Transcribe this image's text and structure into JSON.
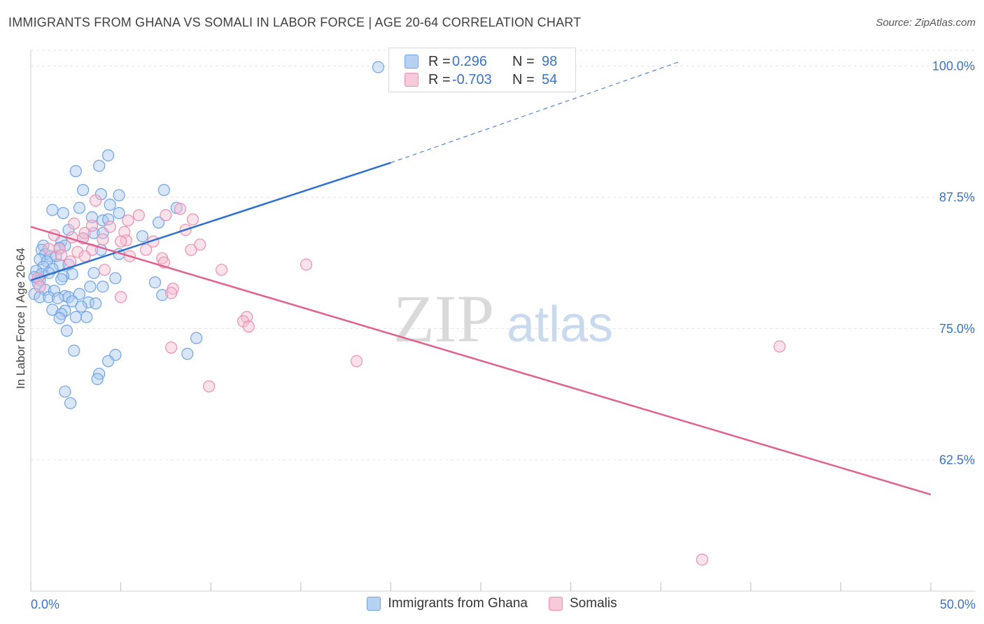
{
  "title": "IMMIGRANTS FROM GHANA VS SOMALI IN LABOR FORCE | AGE 20-64 CORRELATION CHART",
  "source": "Source: ZipAtlas.com",
  "watermark": {
    "zip": "ZIP",
    "atlas": "atlas"
  },
  "legend": {
    "rows": [
      {
        "r_label": "R =",
        "r_value": "0.296",
        "n_label": "N =",
        "n_value": "98"
      },
      {
        "r_label": "R =",
        "r_value": "-0.703",
        "n_label": "N =",
        "n_value": "54"
      }
    ]
  },
  "bottom_legend": [
    "Immigrants from Ghana",
    "Somalis"
  ],
  "colors": {
    "ghana": "#6fa3e6",
    "ghana_fill": "#a9c8f0",
    "ghana_line": "#2e6fcf",
    "somali": "#ec8fae",
    "somali_fill": "#f5bfd0",
    "somali_line": "#e0608e",
    "axis_text": "#3a73c4"
  },
  "chart_data": {
    "type": "scatter",
    "title": "IMMIGRANTS FROM GHANA VS SOMALI IN LABOR FORCE | AGE 20-64 CORRELATION CHART",
    "xlabel": "",
    "ylabel": "In Labor Force | Age 20-64",
    "xlim": [
      0,
      50
    ],
    "ylim": [
      50,
      101.5
    ],
    "x_tick_labels": [
      "0.0%",
      "50.0%"
    ],
    "y_ticks": [
      62.5,
      75.0,
      87.5,
      100.0
    ],
    "y_tick_labels": [
      "62.5%",
      "75.0%",
      "87.5%",
      "100.0%"
    ],
    "series": [
      {
        "name": "Immigrants from Ghana",
        "r": 0.296,
        "n": 98,
        "trend": {
          "x0": 0,
          "y0": 79.6,
          "x1": 20,
          "y1": 90.8,
          "dash_x1": 36,
          "dash_y1": 100.4
        },
        "points": [
          [
            19.3,
            99.9
          ],
          [
            4.3,
            91.5
          ],
          [
            3.8,
            90.5
          ],
          [
            2.5,
            90.0
          ],
          [
            2.9,
            88.2
          ],
          [
            7.4,
            88.2
          ],
          [
            4.9,
            87.7
          ],
          [
            3.9,
            87.8
          ],
          [
            4.4,
            86.8
          ],
          [
            1.2,
            86.3
          ],
          [
            1.8,
            86.0
          ],
          [
            4.9,
            86.0
          ],
          [
            8.1,
            86.5
          ],
          [
            2.7,
            86.5
          ],
          [
            3.4,
            85.6
          ],
          [
            4.0,
            85.3
          ],
          [
            4.3,
            85.4
          ],
          [
            7.1,
            85.1
          ],
          [
            2.1,
            84.4
          ],
          [
            3.5,
            84.1
          ],
          [
            4.0,
            84.1
          ],
          [
            6.2,
            83.8
          ],
          [
            2.9,
            83.6
          ],
          [
            1.7,
            83.3
          ],
          [
            0.7,
            82.9
          ],
          [
            1.6,
            82.7
          ],
          [
            1.9,
            82.9
          ],
          [
            0.6,
            82.5
          ],
          [
            3.9,
            82.5
          ],
          [
            0.8,
            82.1
          ],
          [
            1.1,
            81.9
          ],
          [
            1.4,
            81.9
          ],
          [
            4.9,
            82.1
          ],
          [
            0.5,
            81.6
          ],
          [
            0.9,
            81.4
          ],
          [
            1.6,
            81.1
          ],
          [
            2.1,
            81.1
          ],
          [
            0.7,
            80.9
          ],
          [
            1.2,
            80.7
          ],
          [
            0.3,
            80.5
          ],
          [
            0.6,
            80.2
          ],
          [
            1.0,
            80.3
          ],
          [
            2.3,
            80.2
          ],
          [
            3.5,
            80.3
          ],
          [
            0.2,
            79.9
          ],
          [
            0.5,
            79.6
          ],
          [
            1.8,
            80.0
          ],
          [
            4.7,
            79.8
          ],
          [
            0.4,
            79.3
          ],
          [
            1.7,
            79.7
          ],
          [
            6.9,
            79.4
          ],
          [
            3.3,
            79.0
          ],
          [
            4.0,
            79.0
          ],
          [
            0.8,
            78.7
          ],
          [
            1.3,
            78.6
          ],
          [
            0.2,
            78.3
          ],
          [
            0.5,
            78.0
          ],
          [
            1.0,
            78.0
          ],
          [
            1.9,
            78.1
          ],
          [
            2.1,
            78.0
          ],
          [
            2.7,
            78.3
          ],
          [
            7.3,
            78.2
          ],
          [
            1.5,
            77.9
          ],
          [
            2.3,
            77.6
          ],
          [
            3.2,
            77.5
          ],
          [
            2.8,
            77.1
          ],
          [
            3.6,
            77.4
          ],
          [
            1.2,
            76.8
          ],
          [
            1.9,
            76.7
          ],
          [
            1.7,
            76.4
          ],
          [
            2.5,
            76.1
          ],
          [
            3.1,
            76.1
          ],
          [
            1.6,
            76.0
          ],
          [
            2.0,
            74.8
          ],
          [
            9.2,
            74.1
          ],
          [
            2.4,
            72.9
          ],
          [
            8.7,
            72.6
          ],
          [
            4.7,
            72.5
          ],
          [
            4.3,
            71.9
          ],
          [
            3.8,
            70.7
          ],
          [
            3.7,
            70.2
          ],
          [
            1.9,
            69.0
          ],
          [
            2.2,
            67.9
          ]
        ]
      },
      {
        "name": "Somalis",
        "r": -0.703,
        "n": 54,
        "trend": {
          "x0": 0,
          "y0": 84.7,
          "x1": 50,
          "y1": 59.2
        },
        "points": [
          [
            3.6,
            87.2
          ],
          [
            8.3,
            86.4
          ],
          [
            7.5,
            85.8
          ],
          [
            6.0,
            85.8
          ],
          [
            5.4,
            85.3
          ],
          [
            9.0,
            85.4
          ],
          [
            2.4,
            85.0
          ],
          [
            3.4,
            84.8
          ],
          [
            4.4,
            84.7
          ],
          [
            3.0,
            84.1
          ],
          [
            5.2,
            84.2
          ],
          [
            8.6,
            84.4
          ],
          [
            1.3,
            83.9
          ],
          [
            2.3,
            83.7
          ],
          [
            2.9,
            83.6
          ],
          [
            4.0,
            83.5
          ],
          [
            5.3,
            83.4
          ],
          [
            5.0,
            83.3
          ],
          [
            6.8,
            83.3
          ],
          [
            9.4,
            83.0
          ],
          [
            1.0,
            82.6
          ],
          [
            1.6,
            82.6
          ],
          [
            3.4,
            82.5
          ],
          [
            6.4,
            82.5
          ],
          [
            8.9,
            82.5
          ],
          [
            2.6,
            82.3
          ],
          [
            1.7,
            82.0
          ],
          [
            3.0,
            81.9
          ],
          [
            5.5,
            81.9
          ],
          [
            7.3,
            81.7
          ],
          [
            2.2,
            81.4
          ],
          [
            7.4,
            81.3
          ],
          [
            15.3,
            81.1
          ],
          [
            4.1,
            80.6
          ],
          [
            10.6,
            80.6
          ],
          [
            0.4,
            79.8
          ],
          [
            0.5,
            79.0
          ],
          [
            7.9,
            78.8
          ],
          [
            7.8,
            78.4
          ],
          [
            5.0,
            78.0
          ],
          [
            12.0,
            76.1
          ],
          [
            11.8,
            75.7
          ],
          [
            12.1,
            75.2
          ],
          [
            7.8,
            73.2
          ],
          [
            41.6,
            73.3
          ],
          [
            18.1,
            71.9
          ],
          [
            9.9,
            69.5
          ],
          [
            37.3,
            53.0
          ]
        ]
      }
    ]
  }
}
